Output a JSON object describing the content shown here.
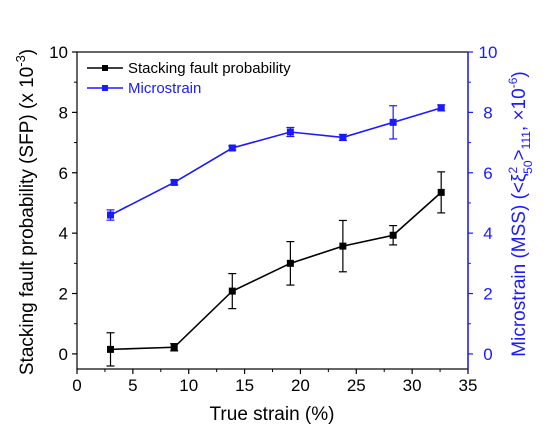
{
  "chart_data": {
    "type": "line",
    "xlabel": "True strain (%)",
    "ylabel_left": "Stacking fault probability (SFP) (x 10",
    "ylabel_left_exp": "-3",
    "ylabel_left_close": ")",
    "ylabel_right": "Microstrain (MSS) (<ξ",
    "ylabel_right_sup": "2",
    "ylabel_right_sub": "50",
    "ylabel_right_mid": ">",
    "ylabel_right_sub2": "111",
    "ylabel_right_tail": ", ×10",
    "ylabel_right_exp": "-6",
    "ylabel_right_close": ")",
    "xlim": [
      0,
      35
    ],
    "ylim_left": [
      -0.5,
      10
    ],
    "ylim_right": [
      -0.5,
      10
    ],
    "x_ticks": [
      "0",
      "5",
      "10",
      "15",
      "20",
      "25",
      "30",
      "35"
    ],
    "y_ticks_left": [
      "0",
      "2",
      "4",
      "6",
      "8",
      "10"
    ],
    "y_ticks_right": [
      "0",
      "2",
      "4",
      "6",
      "8",
      "10"
    ],
    "legend_position": "top-left",
    "colors": {
      "series1": "#000000",
      "series2": "#1a1aff",
      "right_axis": "#1a1aff"
    },
    "series": [
      {
        "name": "Stacking fault probability",
        "axis": "left",
        "x": [
          3.0,
          8.7,
          13.9,
          19.1,
          23.8,
          28.3,
          32.6
        ],
        "y": [
          0.15,
          0.22,
          2.08,
          3.0,
          3.57,
          3.93,
          5.35
        ],
        "err": [
          0.55,
          0.12,
          0.58,
          0.72,
          0.85,
          0.32,
          0.68
        ]
      },
      {
        "name": "Microstrain",
        "axis": "right",
        "x": [
          3.0,
          8.7,
          13.9,
          19.1,
          23.8,
          28.3,
          32.6
        ],
        "y": [
          4.6,
          5.68,
          6.82,
          7.35,
          7.17,
          7.67,
          8.15
        ],
        "err": [
          0.17,
          0.08,
          0.07,
          0.15,
          0.1,
          0.55,
          0.1
        ]
      }
    ]
  }
}
